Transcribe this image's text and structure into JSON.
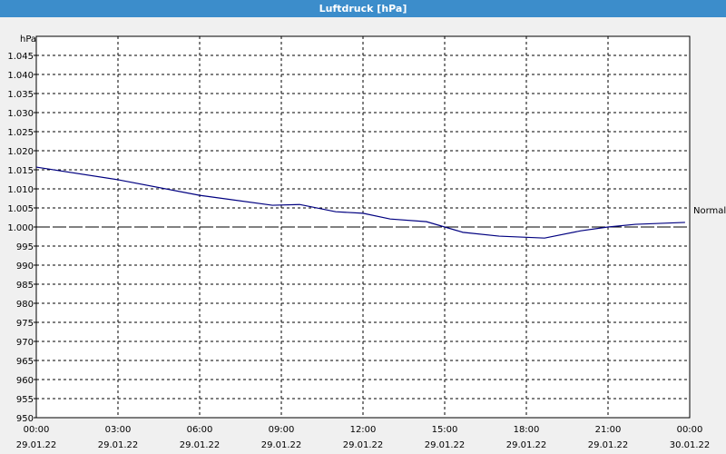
{
  "chart_data": {
    "type": "line",
    "title": "Luftdruck [hPa]",
    "y_label": "hPa",
    "x": [
      0,
      3,
      6,
      8.67,
      9.67,
      11,
      12,
      13,
      14.33,
      15.67,
      17,
      18.67,
      20,
      21,
      22,
      23.83
    ],
    "series": [
      {
        "name": "Luftdruck",
        "color": "#000080",
        "values": [
          1015.7,
          1012.4,
          1008.3,
          1005.7,
          1005.9,
          1004.0,
          1003.6,
          1002.1,
          1001.4,
          998.6,
          997.6,
          997.1,
          999.0,
          1000.0,
          1000.7,
          1001.2
        ]
      }
    ],
    "reference": {
      "label": "Normal",
      "value": 1000
    },
    "xlim": [
      0,
      24
    ],
    "xticks": [
      {
        "value": 0,
        "label": "00:00",
        "date": "29.01.22"
      },
      {
        "value": 3,
        "label": "03:00",
        "date": "29.01.22"
      },
      {
        "value": 6,
        "label": "06:00",
        "date": "29.01.22"
      },
      {
        "value": 9,
        "label": "09:00",
        "date": "29.01.22"
      },
      {
        "value": 12,
        "label": "12:00",
        "date": "29.01.22"
      },
      {
        "value": 15,
        "label": "15:00",
        "date": "29.01.22"
      },
      {
        "value": 18,
        "label": "18:00",
        "date": "29.01.22"
      },
      {
        "value": 21,
        "label": "21:00",
        "date": "29.01.22"
      },
      {
        "value": 24,
        "label": "00:00",
        "date": "30.01.22"
      }
    ],
    "ylim": [
      950,
      1050
    ],
    "yticks": [
      950,
      955,
      960,
      965,
      970,
      975,
      980,
      985,
      990,
      995,
      {
        "value": 1000,
        "label": "1.000"
      },
      {
        "value": 1005,
        "label": "1.005"
      },
      {
        "value": 1010,
        "label": "1.010"
      },
      {
        "value": 1015,
        "label": "1.015"
      },
      {
        "value": 1020,
        "label": "1.020"
      },
      {
        "value": 1025,
        "label": "1.025"
      },
      {
        "value": 1030,
        "label": "1.030"
      },
      {
        "value": 1035,
        "label": "1.035"
      },
      {
        "value": 1040,
        "label": "1.040"
      },
      {
        "value": 1045,
        "label": "1.045"
      }
    ],
    "grid": true
  }
}
